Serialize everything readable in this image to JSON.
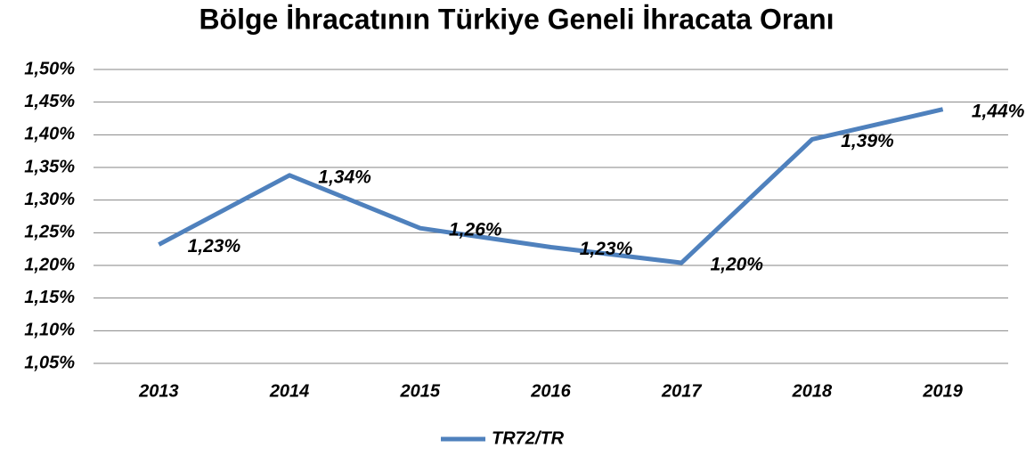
{
  "chart_data": {
    "type": "line",
    "title": "Bölge İhracatının Türkiye Geneli İhracata Oranı",
    "categories": [
      "2013",
      "2014",
      "2015",
      "2016",
      "2017",
      "2018",
      "2019"
    ],
    "series": [
      {
        "name": "TR72/TR",
        "color": "#4f81bd",
        "values": [
          1.232,
          1.338,
          1.257,
          1.228,
          1.204,
          1.393,
          1.439
        ],
        "value_labels": [
          "1,23%",
          "1,34%",
          "1,26%",
          "1,23%",
          "1,20%",
          "1,39%",
          "1,44%"
        ]
      }
    ],
    "ylim": [
      1.05,
      1.5
    ],
    "yticks": [
      {
        "value": 1.05,
        "label": "1,05%"
      },
      {
        "value": 1.1,
        "label": "1,10%"
      },
      {
        "value": 1.15,
        "label": "1,15%"
      },
      {
        "value": 1.2,
        "label": "1,20%"
      },
      {
        "value": 1.25,
        "label": "1,25%"
      },
      {
        "value": 1.3,
        "label": "1,30%"
      },
      {
        "value": 1.35,
        "label": "1,35%"
      },
      {
        "value": 1.4,
        "label": "1,40%"
      },
      {
        "value": 1.45,
        "label": "1,45%"
      },
      {
        "value": 1.5,
        "label": "1,50%"
      }
    ],
    "grid": true,
    "legend": "bottom"
  }
}
